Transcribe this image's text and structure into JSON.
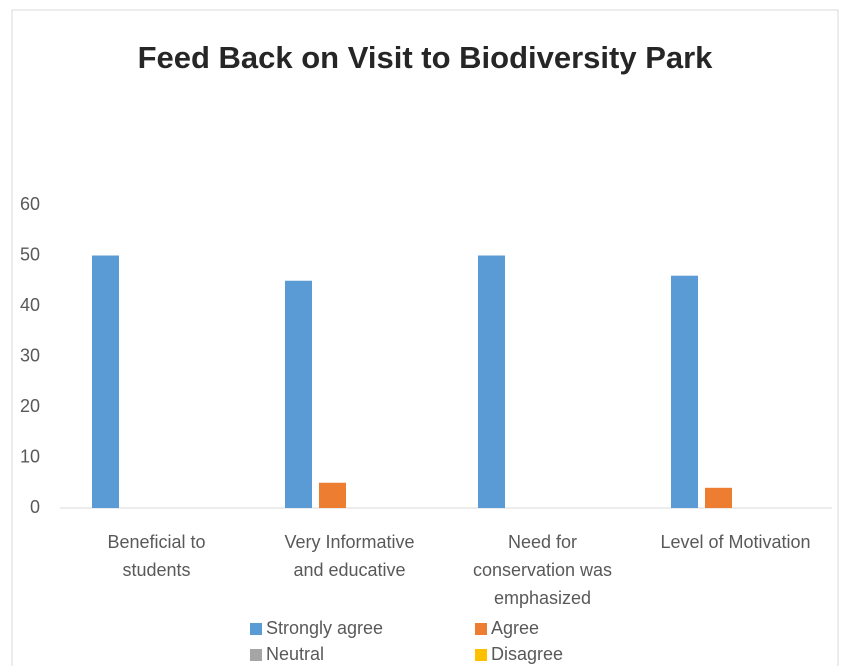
{
  "chart_data": {
    "type": "bar",
    "title": "Feed Back on Visit to Biodiversity Park",
    "categories": [
      "Beneficial to students",
      "Very Informative and educative",
      "Need for conservation was emphasized",
      "Level of Motivation"
    ],
    "series": [
      {
        "name": "Strongly agree",
        "color": "#5b9bd5",
        "values": [
          50,
          45,
          50,
          46
        ]
      },
      {
        "name": "Agree",
        "color": "#ed7d31",
        "values": [
          0,
          5,
          0,
          4
        ]
      },
      {
        "name": "Neutral",
        "color": "#a5a5a5",
        "values": [
          0,
          0,
          0,
          0
        ]
      },
      {
        "name": "Disagree",
        "color": "#ffc000",
        "values": [
          0,
          0,
          0,
          0
        ]
      }
    ],
    "ylim": [
      0,
      60
    ],
    "yticks": [
      0,
      10,
      20,
      30,
      40,
      50,
      60
    ],
    "grid": false,
    "legend": "bottom"
  }
}
